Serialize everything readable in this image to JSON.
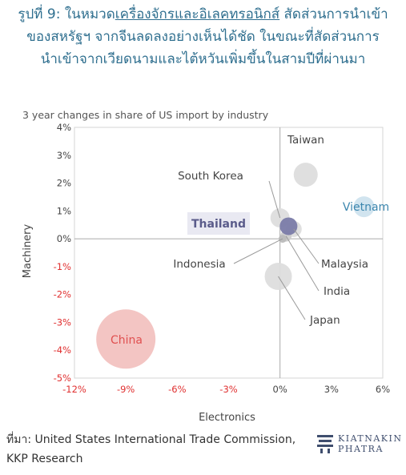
{
  "header": {
    "title_pre": "รูปที่ 9: ในหมวด",
    "title_underlined": "เครื่องจักรและอิเลคทรอนิกส์",
    "title_line1_post": " สัดส่วนการนำเข้า",
    "title_line2": "ของสหรัฐฯ จากจีนลดลงอย่างเห็นได้ชัด ในขณะที่สัดส่วนการ",
    "title_line3": "นำเข้าจากเวียดนามและไต้หวันเพิ่มขึ้นในสามปีที่ผ่านมา"
  },
  "chart_data": {
    "type": "scatter",
    "title": "3 year changes in share of US import by industry",
    "xlabel": "Electronics",
    "ylabel": "Machinery",
    "xlim": [
      -12,
      6
    ],
    "ylim": [
      -5,
      4
    ],
    "x_ticks": [
      "-12%",
      "-9%",
      "-6%",
      "-3%",
      "0%",
      "3%",
      "6%"
    ],
    "y_ticks": [
      "-5%",
      "-4%",
      "-3%",
      "-2%",
      "-1%",
      "0%",
      "1%",
      "2%",
      "3%",
      "4%"
    ],
    "points": [
      {
        "label": "China",
        "x": -9.0,
        "y": -3.6,
        "size": 37,
        "color": "#f2c2c0",
        "label_color": "#e05050"
      },
      {
        "label": "Vietnam",
        "x": 4.9,
        "y": 1.15,
        "size": 13,
        "color": "#cfe3ee",
        "label_color": "#3b86ae"
      },
      {
        "label": "Taiwan",
        "x": 1.5,
        "y": 2.3,
        "size": 15,
        "color": "#dddddd",
        "label_color": "#444444"
      },
      {
        "label": "South Korea",
        "x": 0.0,
        "y": 0.75,
        "size": 12,
        "color": "#dddddd",
        "label_color": "#444444"
      },
      {
        "label": "Malaysia",
        "x": 0.8,
        "y": 0.35,
        "size": 10,
        "color": "#dddddd",
        "label_color": "#444444"
      },
      {
        "label": "Japan",
        "x": -0.1,
        "y": -1.35,
        "size": 17,
        "color": "#dddddd",
        "label_color": "#444444"
      },
      {
        "label": "India",
        "x": 0.35,
        "y": 0.1,
        "size": 7,
        "color": "#cccccc",
        "label_color": "#444444"
      },
      {
        "label": "Indonesia",
        "x": 0.15,
        "y": 0.0,
        "size": 5,
        "color": "#bbbbbb",
        "label_color": "#444444"
      },
      {
        "label": "Thailand",
        "x": 0.5,
        "y": 0.45,
        "size": 11,
        "color": "#7a7ba8",
        "label_color": "#5a5b8a"
      }
    ]
  },
  "footer": {
    "source_line1": "ที่มา: United States International Trade Commission,",
    "source_line2": "KKP Research",
    "logo_line1": "KIATNAKIN",
    "logo_line2": "PHATRA"
  }
}
